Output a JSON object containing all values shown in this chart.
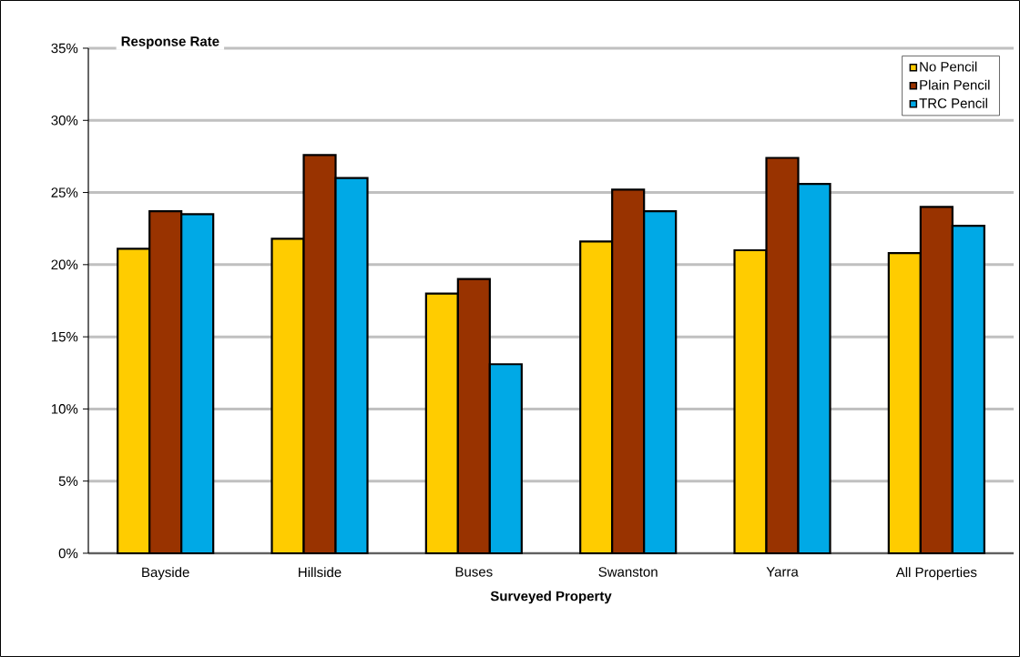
{
  "chart_data": {
    "type": "bar",
    "title": "Response Rate",
    "xlabel": "Surveyed Property",
    "categories": [
      "Bayside",
      "Hillside",
      "Buses",
      "Swanston",
      "Yarra",
      "All Properties"
    ],
    "series": [
      {
        "name": "No Pencil",
        "color": "#ffcc00",
        "values": [
          21.1,
          21.8,
          18.0,
          21.6,
          21.0,
          20.8
        ]
      },
      {
        "name": "Plain Pencil",
        "color": "#993300",
        "values": [
          23.7,
          27.6,
          19.0,
          25.2,
          27.4,
          24.0
        ]
      },
      {
        "name": "TRC Pencil",
        "color": "#00a9e6",
        "values": [
          23.5,
          26.0,
          13.1,
          23.7,
          25.6,
          22.7
        ]
      }
    ],
    "ylim": [
      0,
      35
    ],
    "yticks": [
      {
        "value": 0,
        "label": "0%"
      },
      {
        "value": 5,
        "label": "5%"
      },
      {
        "value": 10,
        "label": "10%"
      },
      {
        "value": 15,
        "label": "15%"
      },
      {
        "value": 20,
        "label": "20%"
      },
      {
        "value": 25,
        "label": "25%"
      },
      {
        "value": 30,
        "label": "30%"
      },
      {
        "value": 35,
        "label": "35%"
      }
    ],
    "grid": "y",
    "legend": "top right"
  }
}
